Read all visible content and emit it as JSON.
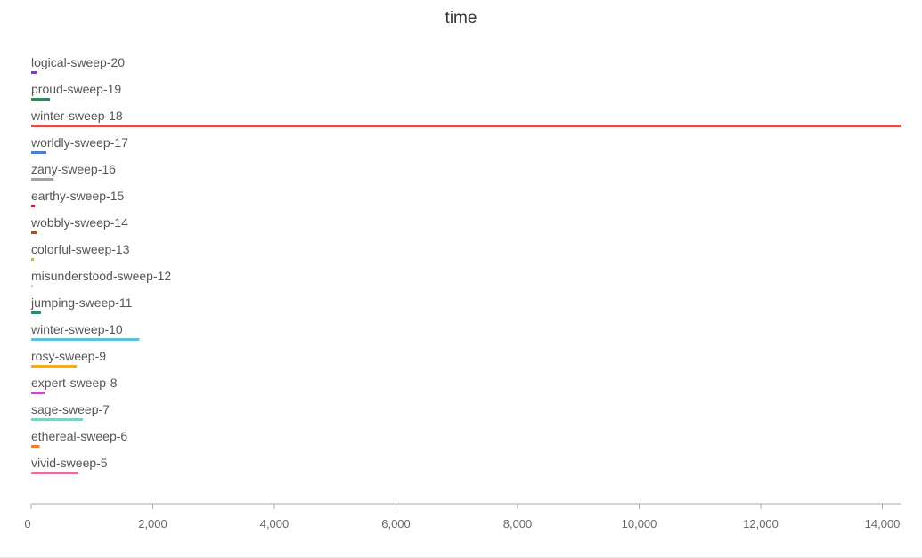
{
  "chart_data": {
    "type": "bar",
    "orientation": "horizontal",
    "title": "time",
    "xlabel": "",
    "ylabel": "",
    "xlim": [
      0,
      14300
    ],
    "xticks": [
      0,
      2000,
      4000,
      6000,
      8000,
      10000,
      12000,
      14000
    ],
    "xtick_labels": [
      "0",
      "2,000",
      "4,000",
      "6,000",
      "8,000",
      "10,000",
      "12,000",
      "14,000"
    ],
    "grid": false,
    "legend": "none",
    "series": [
      {
        "name": "logical-sweep-20",
        "value": 90,
        "color": "#7b3fbf"
      },
      {
        "name": "proud-sweep-19",
        "value": 310,
        "color": "#2e8b57"
      },
      {
        "name": "winter-sweep-18",
        "value": 14300,
        "color": "#d9534f"
      },
      {
        "name": "worldly-sweep-17",
        "value": 250,
        "color": "#4a7fd6"
      },
      {
        "name": "zany-sweep-16",
        "value": 370,
        "color": "#a0a0a8"
      },
      {
        "name": "earthy-sweep-15",
        "value": 60,
        "color": "#b22234"
      },
      {
        "name": "wobbly-sweep-14",
        "value": 90,
        "color": "#a0522d"
      },
      {
        "name": "colorful-sweep-13",
        "value": 45,
        "color": "#9acd32"
      },
      {
        "name": "misunderstood-sweep-12",
        "value": 25,
        "color": "#f4b6c2"
      },
      {
        "name": "jumping-sweep-11",
        "value": 160,
        "color": "#1f8a7a"
      },
      {
        "name": "winter-sweep-10",
        "value": 1780,
        "color": "#5bc0de"
      },
      {
        "name": "rosy-sweep-9",
        "value": 750,
        "color": "#f0ad1e"
      },
      {
        "name": "expert-sweep-8",
        "value": 220,
        "color": "#c04fc4"
      },
      {
        "name": "sage-sweep-7",
        "value": 850,
        "color": "#7dd3c0"
      },
      {
        "name": "ethereal-sweep-6",
        "value": 140,
        "color": "#f07c3a"
      },
      {
        "name": "vivid-sweep-5",
        "value": 780,
        "color": "#e86fa0"
      }
    ]
  }
}
